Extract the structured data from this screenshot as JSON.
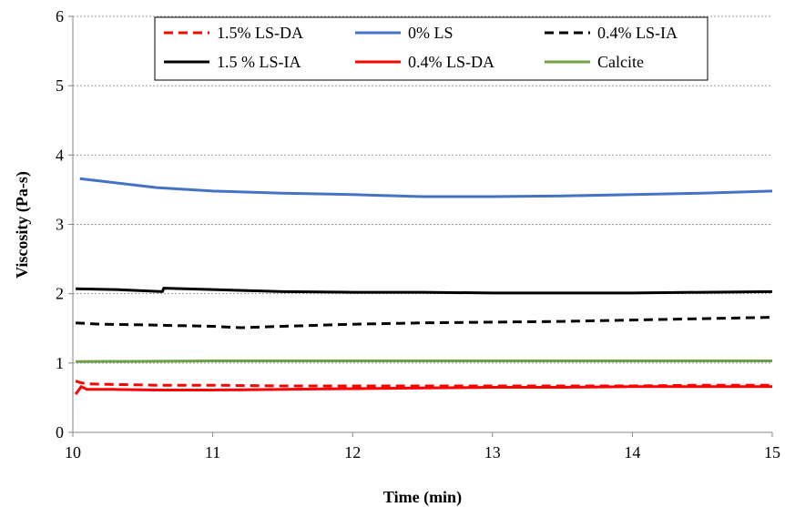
{
  "chart_data": {
    "type": "line",
    "title": "",
    "xlabel": "Time (min)",
    "ylabel": "Viscosity (Pa-s)",
    "xlim": [
      10,
      15
    ],
    "ylim": [
      0,
      6
    ],
    "xticks": [
      "10",
      "11",
      "12",
      "13",
      "14",
      "15"
    ],
    "yticks": [
      "0",
      "1",
      "2",
      "3",
      "4",
      "5",
      "6"
    ],
    "grid": "horizontal-dotted",
    "legend_position": "top",
    "series": [
      {
        "name": "1.5% LS-DA",
        "color": "#ff0000",
        "dash": "dashed",
        "x": [
          10.02,
          10.05,
          10.1,
          10.3,
          10.6,
          11.0,
          11.5,
          12.0,
          12.5,
          13.0,
          13.5,
          14.0,
          14.5,
          15.0
        ],
        "y": [
          0.74,
          0.72,
          0.7,
          0.69,
          0.68,
          0.68,
          0.67,
          0.67,
          0.67,
          0.67,
          0.67,
          0.67,
          0.68,
          0.68
        ]
      },
      {
        "name": "0% LS",
        "color": "#4472c4",
        "dash": "solid",
        "x": [
          10.05,
          10.3,
          10.6,
          11.0,
          11.5,
          12.0,
          12.15,
          12.5,
          13.0,
          13.5,
          14.0,
          14.5,
          15.0
        ],
        "y": [
          3.66,
          3.6,
          3.53,
          3.48,
          3.45,
          3.43,
          3.42,
          3.4,
          3.4,
          3.41,
          3.43,
          3.45,
          3.48
        ]
      },
      {
        "name": "0.4% LS-IA",
        "color": "#000000",
        "dash": "dashed",
        "x": [
          10.02,
          10.2,
          10.5,
          11.0,
          11.2,
          11.5,
          12.0,
          12.5,
          13.0,
          13.5,
          14.0,
          14.5,
          15.0
        ],
        "y": [
          1.58,
          1.56,
          1.55,
          1.53,
          1.51,
          1.53,
          1.56,
          1.58,
          1.59,
          1.6,
          1.62,
          1.64,
          1.66
        ]
      },
      {
        "name": "1.5 % LS-IA",
        "color": "#000000",
        "dash": "solid",
        "x": [
          10.02,
          10.3,
          10.64,
          10.65,
          11.0,
          11.5,
          12.0,
          12.5,
          13.0,
          13.5,
          14.0,
          14.5,
          15.0
        ],
        "y": [
          2.07,
          2.06,
          2.03,
          2.08,
          2.06,
          2.03,
          2.02,
          2.02,
          2.01,
          2.01,
          2.01,
          2.02,
          2.03
        ]
      },
      {
        "name": "0.4% LS-DA",
        "color": "#ff0000",
        "dash": "solid",
        "x": [
          10.02,
          10.06,
          10.1,
          10.3,
          10.6,
          11.0,
          11.5,
          12.0,
          12.5,
          13.0,
          13.5,
          14.0,
          14.5,
          15.0
        ],
        "y": [
          0.55,
          0.66,
          0.62,
          0.62,
          0.61,
          0.61,
          0.62,
          0.63,
          0.64,
          0.65,
          0.65,
          0.66,
          0.66,
          0.66
        ]
      },
      {
        "name": "Calcite",
        "color": "#70a044",
        "dash": "solid",
        "x": [
          10.02,
          11.0,
          12.0,
          13.0,
          14.0,
          15.0
        ],
        "y": [
          1.02,
          1.03,
          1.03,
          1.03,
          1.03,
          1.03
        ]
      }
    ]
  }
}
